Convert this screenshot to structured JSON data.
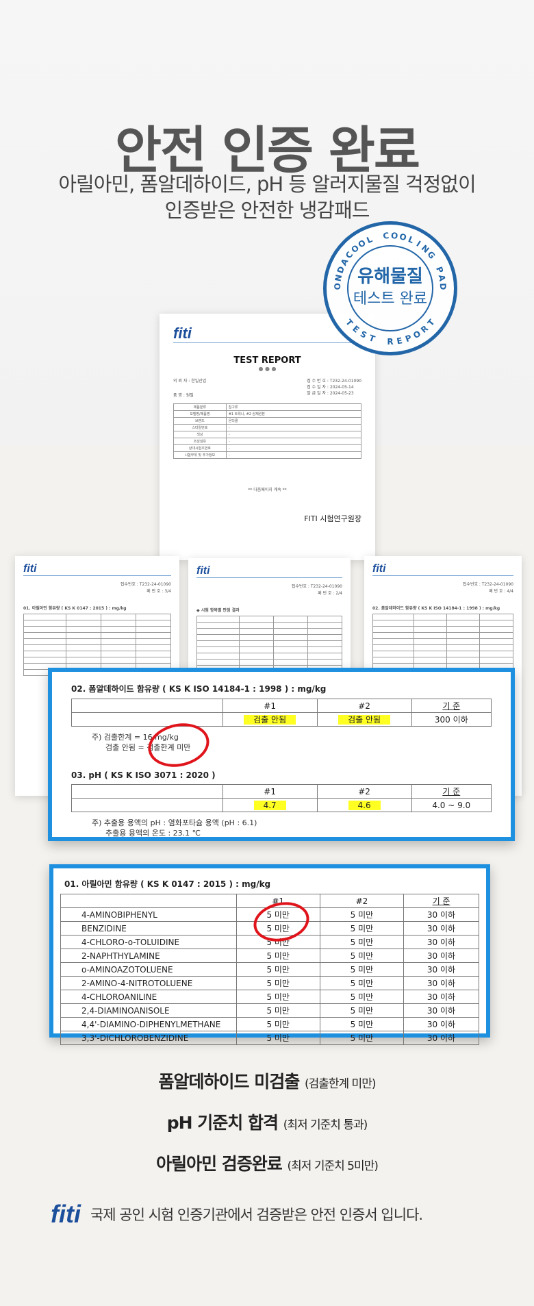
{
  "title": "안전 인증 완료",
  "subtitle": [
    "아릴아민, 폼알데하이드, pH 등 알러지물질 걱정없이",
    "인증받은 안전한 냉감패드"
  ],
  "stamp": {
    "ring_top": "ONDACOOL COOLING PAD",
    "ring_bottom": "TEST REPORT",
    "line1": "유해물질",
    "line2": "테스트 완료",
    "color": "#2266a8"
  },
  "main_report": {
    "logo": "fiti",
    "heading": "TEST REPORT",
    "client": "의 뢰 자 : 한일산업",
    "item": "품 명 : 원필",
    "receipt_no": "접 수 번 호 : T232-24-01090",
    "receipt_date": "접 수 일 자 : 2024-05-14",
    "issue_date": "발 급 일 자 : 2024-05-23",
    "rows": [
      [
        "제품분류",
        "침구류"
      ],
      [
        "모델명/제품명",
        "#1 트위니, #2 삼제원본"
      ],
      [
        "브랜드",
        "온다쿨"
      ],
      [
        "스타일번호",
        "-"
      ],
      [
        "색상",
        "-"
      ],
      [
        "조성섬유",
        "-"
      ],
      [
        "상대시험조번호",
        "-"
      ],
      [
        "시험부위 및 추가정보",
        "-"
      ]
    ],
    "continued": "** 다음페이지 계속 **",
    "lab": "FITI 시험연구원장"
  },
  "small_reports": [
    {
      "logo": "fiti",
      "no": "접수번호 : T232-24-01090",
      "page": "페 번 호 : 3/4",
      "section": "01. 아릴아민 함유량 ( KS K 0147 : 2015 ) : mg/kg"
    },
    {
      "logo": "fiti",
      "no": "접수번호 : T232-24-01090",
      "page": "페 번 호 : 2/4",
      "section": "◆ 시험 항목별 판정 결과"
    },
    {
      "logo": "fiti",
      "no": "접수번호 : T232-24-01090",
      "page": "페 번 호 : 4/4",
      "section": "02. 폼알데하이드 함유량 ( KS K ISO 14184-1 : 1998 ) : mg/kg"
    }
  ],
  "formaldehyde": {
    "heading": "02.  폼알데하이드 함유량 ( KS K ISO 14184-1 : 1998 ) : mg/kg",
    "cols": [
      "",
      "#1",
      "#2",
      "기 준"
    ],
    "row": [
      "",
      "검출 안됨",
      "검출 안됨",
      "300 이하"
    ],
    "notes": [
      "주) 검출한계 = 16 mg/kg",
      "검출 안됨 = 검출한계 미만"
    ]
  },
  "ph": {
    "heading": "03.  pH ( KS K ISO 3071 : 2020 )",
    "cols": [
      "",
      "#1",
      "#2",
      "기 준"
    ],
    "row": [
      "",
      "4.7",
      "4.6",
      "4.0 ~ 9.0"
    ],
    "notes": [
      "주) 추출용 용액의 pH : 염화포타슘 용액 (pH : 6.1)",
      "추출용 용액의 온도 : 23.1 ℃"
    ]
  },
  "arylamine": {
    "heading": "01.  아릴아민 함유량 ( KS K 0147 : 2015 ) : mg/kg",
    "cols": [
      "",
      "#1",
      "#2",
      "기 준"
    ],
    "rows": [
      [
        "4-AMINOBIPHENYL",
        "5 미만",
        "5 미만",
        "30 이하"
      ],
      [
        "BENZIDINE",
        "5 미만",
        "5 미만",
        "30 이하"
      ],
      [
        "4-CHLORO-o-TOLUIDINE",
        "5 미만",
        "5 미만",
        "30 이하"
      ],
      [
        "2-NAPHTHYLAMINE",
        "5 미만",
        "5 미만",
        "30 이하"
      ],
      [
        "o-AMINOAZOTOLUENE",
        "5 미만",
        "5 미만",
        "30 이하"
      ],
      [
        "2-AMINO-4-NITROTOLUENE",
        "5 미만",
        "5 미만",
        "30 이하"
      ],
      [
        "4-CHLOROANILINE",
        "5 미만",
        "5 미만",
        "30 이하"
      ],
      [
        "2,4-DIAMINOANISOLE",
        "5 미만",
        "5 미만",
        "30 이하"
      ],
      [
        "4,4'-DIAMINO-DIPHENYLMETHANE",
        "5 미만",
        "5 미만",
        "30 이하"
      ],
      [
        "3,3'-DICHLOROBENZIDINE",
        "5 미만",
        "5 미만",
        "30 이하"
      ]
    ]
  },
  "summary": [
    {
      "main": "폼알데하이드 미검출",
      "note": "(검출한계 미만)"
    },
    {
      "main": "pH 기준치 합격",
      "note": "(최저 기준치 통과)"
    },
    {
      "main": "아릴아민 검증완료",
      "note": "(최저 기준치 5미만)"
    }
  ],
  "footer": {
    "logo": "fiti",
    "text": "국제 공인 시험 인증기관에서 검증받은 안전 인증서 입니다."
  },
  "colors": {
    "accent_blue": "#1e90e0",
    "circle_red": "#e0141b",
    "highlight": "#ffff22"
  }
}
